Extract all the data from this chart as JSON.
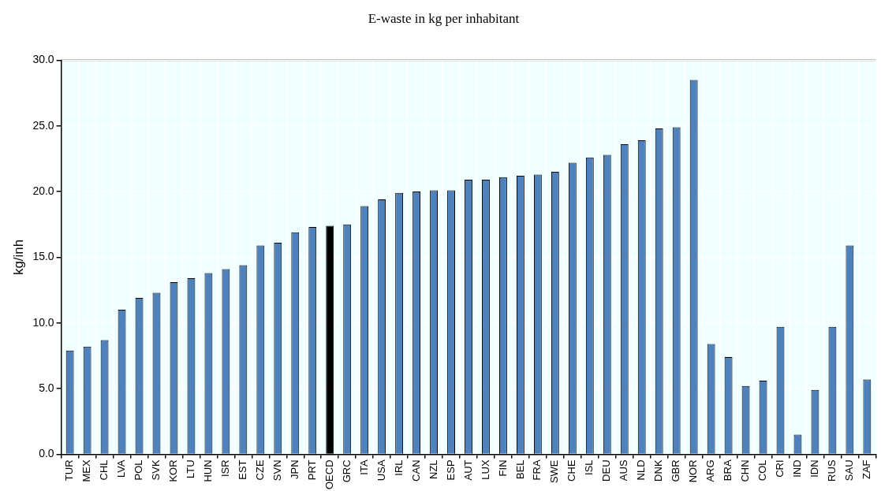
{
  "chart_data": {
    "type": "bar",
    "title": "E-waste in kg per inhabitant",
    "ylabel": "kg/inh",
    "categories": [
      "TUR",
      "MEX",
      "CHL",
      "LVA",
      "POL",
      "SVK",
      "KOR",
      "LTU",
      "HUN",
      "ISR",
      "EST",
      "CZE",
      "SVN",
      "JPN",
      "PRT",
      "OECD",
      "GRC",
      "ITA",
      "USA",
      "IRL",
      "CAN",
      "NZL",
      "ESP",
      "AUT",
      "LUX",
      "FIN",
      "BEL",
      "FRA",
      "SWE",
      "CHE",
      "ISL",
      "DEU",
      "AUS",
      "NLD",
      "DNK",
      "GBR",
      "NOR",
      "ARG",
      "BRA",
      "CHN",
      "COL",
      "CRI",
      "IND",
      "IDN",
      "RUS",
      "SAU",
      "ZAF"
    ],
    "values": [
      7.9,
      8.2,
      8.7,
      11.0,
      11.9,
      12.3,
      13.1,
      13.4,
      13.8,
      14.1,
      14.4,
      15.9,
      16.1,
      16.9,
      17.3,
      17.4,
      17.5,
      18.9,
      19.4,
      19.9,
      20.0,
      20.1,
      20.1,
      20.9,
      20.9,
      21.1,
      21.2,
      21.3,
      21.5,
      22.2,
      22.6,
      22.8,
      23.6,
      23.9,
      24.8,
      24.9,
      28.5,
      8.4,
      7.4,
      5.2,
      5.6,
      9.7,
      1.5,
      4.9,
      9.7,
      15.9,
      5.7
    ],
    "colors": [
      "#4f81bd",
      "#4f81bd",
      "#4f81bd",
      "#4f81bd",
      "#4f81bd",
      "#4f81bd",
      "#4f81bd",
      "#4f81bd",
      "#4f81bd",
      "#4f81bd",
      "#4f81bd",
      "#4f81bd",
      "#4f81bd",
      "#4f81bd",
      "#4f81bd",
      "#000000",
      "#4f81bd",
      "#4f81bd",
      "#4f81bd",
      "#4f81bd",
      "#4f81bd",
      "#4f81bd",
      "#4f81bd",
      "#4f81bd",
      "#4f81bd",
      "#4f81bd",
      "#4f81bd",
      "#4f81bd",
      "#4f81bd",
      "#4f81bd",
      "#4f81bd",
      "#4f81bd",
      "#4f81bd",
      "#4f81bd",
      "#4f81bd",
      "#4f81bd",
      "#4f81bd",
      "#4f81bd",
      "#4f81bd",
      "#4f81bd",
      "#4f81bd",
      "#4f81bd",
      "#4f81bd",
      "#4f81bd",
      "#4f81bd",
      "#4f81bd",
      "#4f81bd"
    ],
    "ylim": [
      0,
      30
    ],
    "yticks": [
      {
        "value": 0,
        "label": "0.0"
      },
      {
        "value": 5,
        "label": "5.0"
      },
      {
        "value": 10,
        "label": "10.0"
      },
      {
        "value": 15,
        "label": "15.0"
      },
      {
        "value": 20,
        "label": "20.0"
      },
      {
        "value": 25,
        "label": "25.0"
      },
      {
        "value": 30,
        "label": "30.0"
      }
    ],
    "grid": true,
    "legend": false
  }
}
